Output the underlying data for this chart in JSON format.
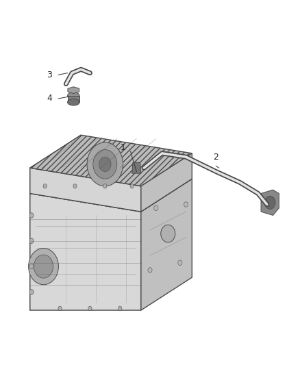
{
  "title": "",
  "background_color": "#ffffff",
  "line_color": "#4a4a4a",
  "label_color": "#222222",
  "fig_width": 4.38,
  "fig_height": 5.33,
  "dpi": 100,
  "engine_color": "#d0d0d0",
  "engine_dark": "#a0a0a0",
  "engine_light": "#e8e8e8"
}
